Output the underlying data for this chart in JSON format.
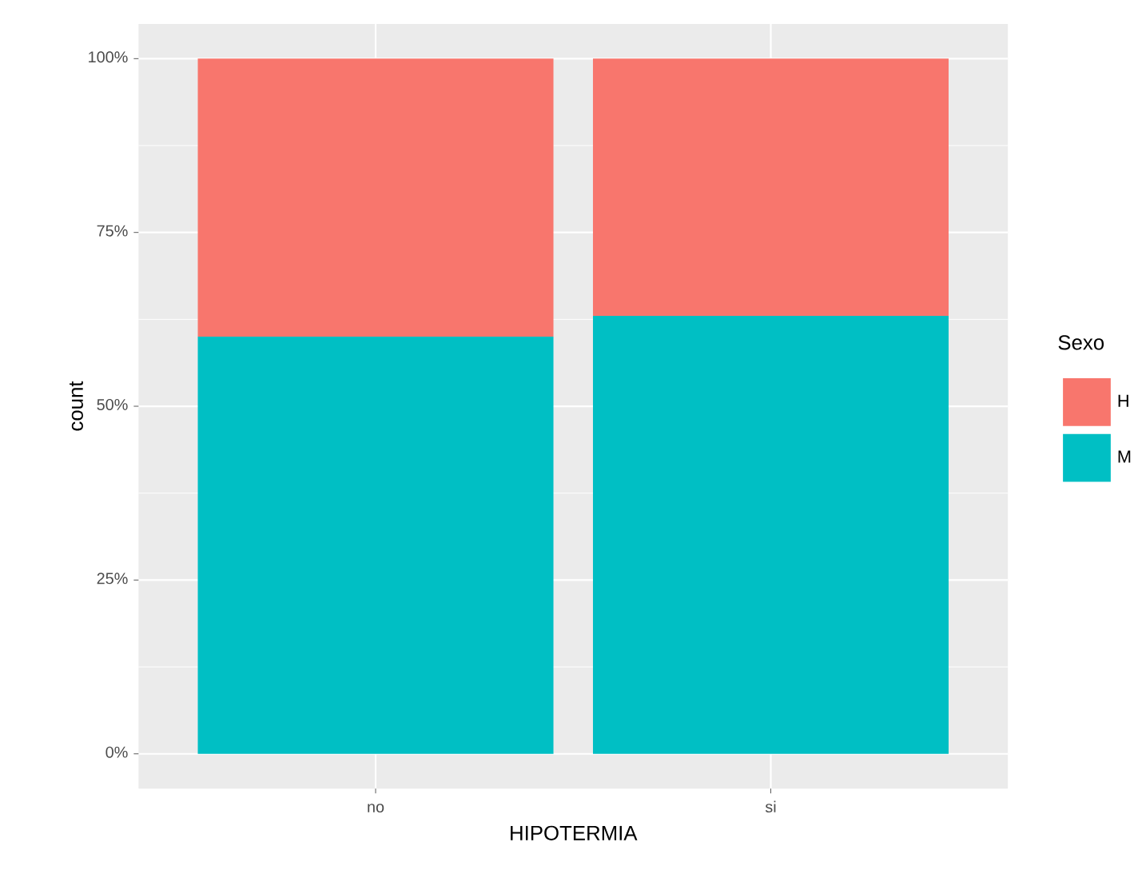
{
  "chart_data": {
    "type": "bar",
    "stacked": true,
    "xlabel": "HIPOTERMIA",
    "ylabel": "count",
    "legend_title": "Sexo",
    "legend": "right",
    "grid": true,
    "categories": [
      "no",
      "si"
    ],
    "ylim": [
      -5,
      105
    ],
    "yticks": [
      {
        "value": 0,
        "label": "0%"
      },
      {
        "value": 25,
        "label": "25%"
      },
      {
        "value": 50,
        "label": "50%"
      },
      {
        "value": 75,
        "label": "75%"
      },
      {
        "value": 100,
        "label": "100%"
      }
    ],
    "series": [
      {
        "name": "M",
        "color": "#00bfc4",
        "values": [
          60,
          63
        ]
      },
      {
        "name": "H",
        "color": "#f8766d",
        "values": [
          40,
          37
        ]
      }
    ]
  }
}
